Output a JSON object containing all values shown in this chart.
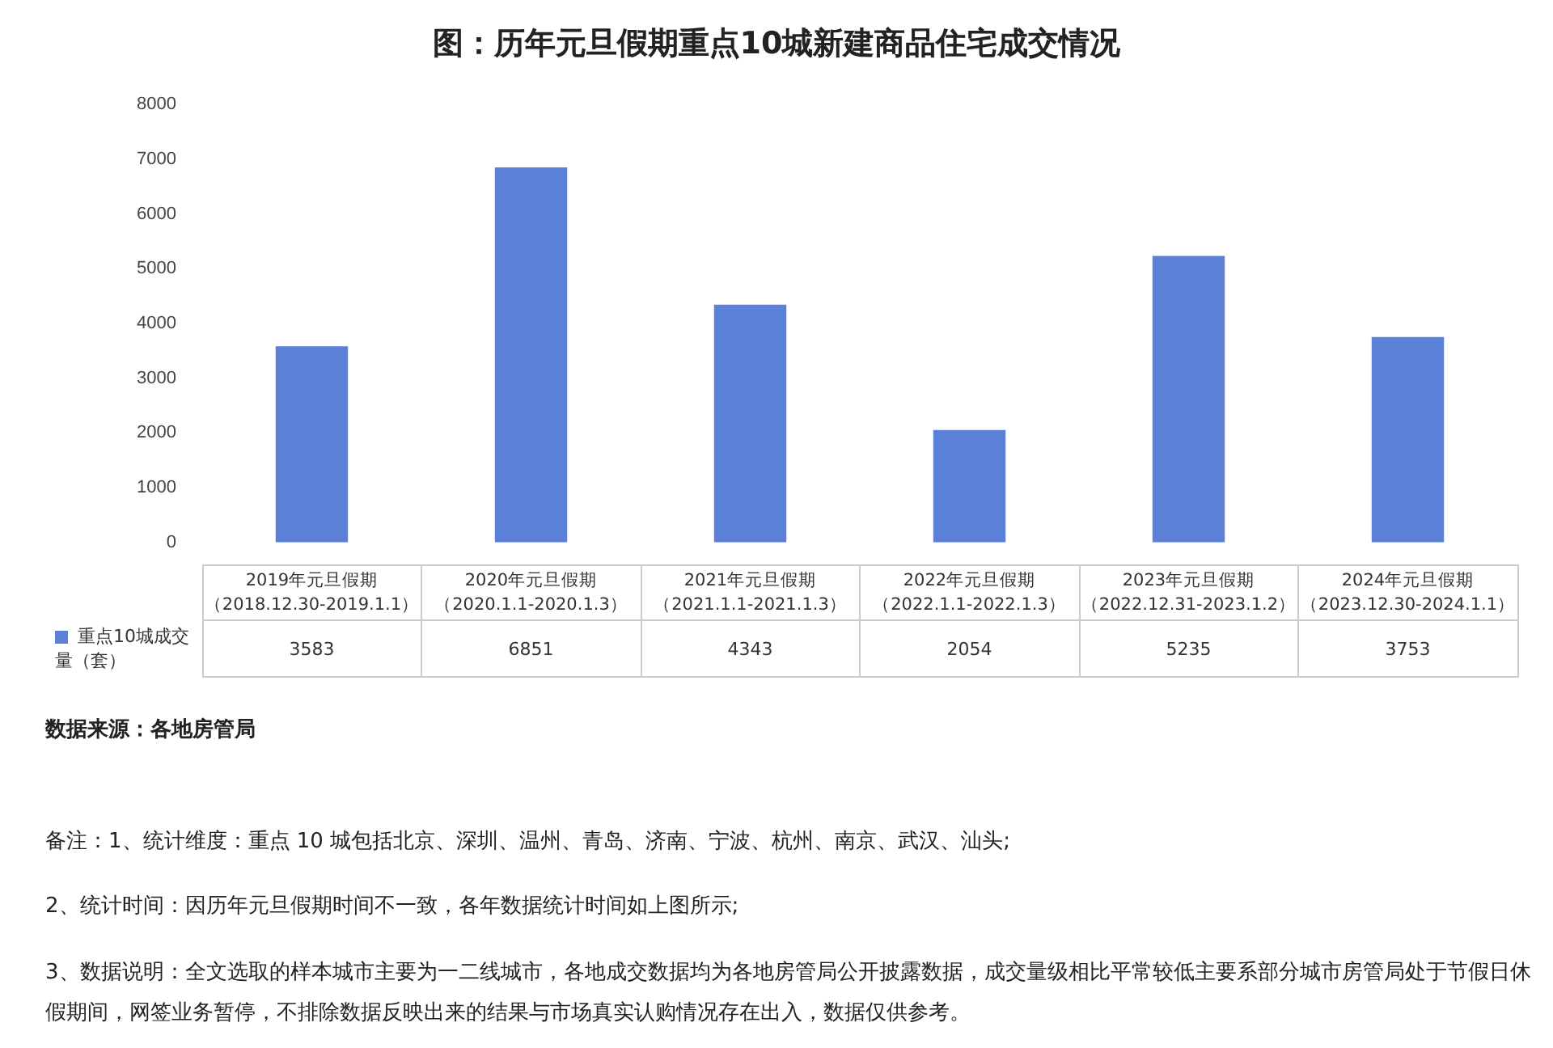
{
  "chart_data": {
    "type": "bar",
    "title": "图：历年元旦假期重点10城新建商品住宅成交情况",
    "categories": [
      "2019年元旦假期（2018.12.30-2019.1.1）",
      "2020年元旦假期（2020.1.1-2020.1.3）",
      "2021年元旦假期（2021.1.1-2021.1.3）",
      "2022年元旦假期（2022.1.1-2022.1.3）",
      "2023年元旦假期（2022.12.31-2023.1.2）",
      "2024年元旦假期（2023.12.30-2024.1.1）"
    ],
    "series": [
      {
        "name": "重点10城成交量（套）",
        "color": "#5a80d8",
        "values": [
          3583,
          6851,
          4343,
          2054,
          5235,
          3753
        ]
      }
    ],
    "ylim": [
      0,
      8000
    ],
    "yticks": [
      0,
      1000,
      2000,
      3000,
      4000,
      5000,
      6000,
      7000,
      8000
    ],
    "grid": false,
    "data_labels": true,
    "annotations": [
      "数据来源：各地房管局",
      "备注：1、统计维度：重点 10 城包括北京、深圳、温州、青岛、济南、宁波、杭州、南京、武汉、汕头;",
      "2、统计时间：因历年元旦假期时间不一致，各年数据统计时间如上图所示;",
      "3、数据说明：全文选取的样本城市主要为一二线城市，各地成交数据均为各地房管局公开披露数据，成交量级相比平常较低主要系部分城市房管局处于节假日休假期间，网签业务暂停，不排除数据反映出来的结果与市场真实认购情况存在出入，数据仅供参考。"
    ]
  }
}
